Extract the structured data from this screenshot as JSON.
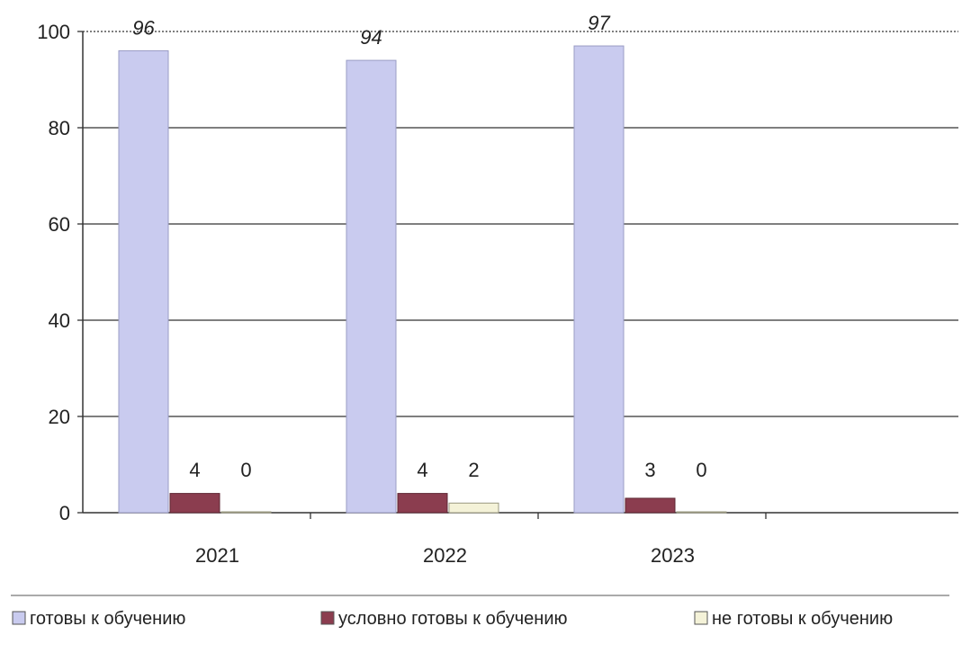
{
  "chart_data": {
    "type": "bar",
    "title": "",
    "xlabel": "",
    "ylabel": "",
    "categories": [
      "2021",
      "2022",
      "2023"
    ],
    "series": [
      {
        "name": "готовы к обучению",
        "values": [
          96,
          94,
          97
        ],
        "labels": [
          "96",
          "94",
          "97"
        ],
        "color": "#c9cbef"
      },
      {
        "name": "условно готовы к обучению",
        "values": [
          4,
          4,
          3
        ],
        "labels": [
          "4",
          "4",
          "3"
        ],
        "color": "#8b3d4f"
      },
      {
        "name": "не готовы к обучению",
        "values": [
          0,
          2,
          0
        ],
        "labels": [
          "0",
          "2",
          "0"
        ],
        "color": "#f4f2d8"
      }
    ],
    "yticks": [
      "0",
      "20",
      "40",
      "60",
      "80",
      "100"
    ],
    "ylim": [
      0,
      100
    ],
    "grid": true,
    "legend_position": "bottom"
  }
}
